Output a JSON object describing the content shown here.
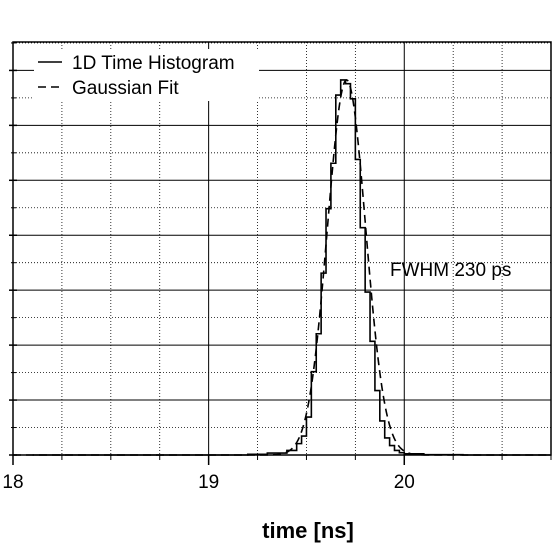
{
  "chart_data": {
    "type": "line",
    "title": "",
    "xlabel": "time [ns]",
    "ylabel": "",
    "xlim": [
      18.0,
      20.75
    ],
    "ylim": [
      0,
      1.09
    ],
    "x_major_ticks": [
      18,
      19,
      20
    ],
    "x_tick_labels": [
      "18",
      "19",
      "20"
    ],
    "y_major_step": 0.145,
    "grid": true,
    "legend_position": "top-left",
    "annotation": "FWHM 230 ps",
    "series": [
      {
        "name": "1D Time Histogram",
        "style": "solid-step",
        "x": [
          18.1,
          19.0,
          19.2,
          19.3,
          19.4,
          19.45,
          19.475,
          19.5,
          19.525,
          19.55,
          19.575,
          19.6,
          19.625,
          19.65,
          19.675,
          19.7,
          19.725,
          19.75,
          19.775,
          19.8,
          19.825,
          19.85,
          19.875,
          19.9,
          19.925,
          19.95,
          19.975,
          20.0,
          20.1,
          20.3,
          20.75
        ],
        "y": [
          0.0,
          0.0,
          0.002,
          0.005,
          0.012,
          0.03,
          0.05,
          0.1,
          0.22,
          0.32,
          0.48,
          0.65,
          0.77,
          0.95,
          0.99,
          0.98,
          0.94,
          0.78,
          0.6,
          0.43,
          0.3,
          0.17,
          0.09,
          0.045,
          0.025,
          0.012,
          0.006,
          0.003,
          0.001,
          0.0,
          0.0
        ]
      },
      {
        "name": "Gaussian Fit",
        "style": "dashed",
        "mean": 19.705,
        "sigma": 0.0977,
        "amplitude": 0.99
      }
    ]
  }
}
